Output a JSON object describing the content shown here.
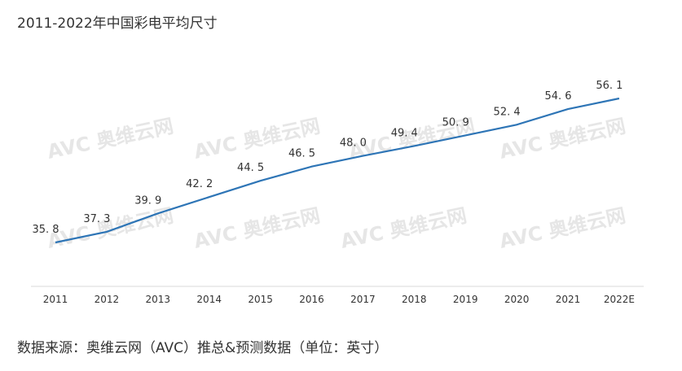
{
  "title": "2011-2022年中国彩电平均尺寸",
  "source": "数据来源：奥维云网（AVC）推总&预测数据（单位：英寸）",
  "watermark": "AVC 奥维云网",
  "colors": {
    "line": "#2e75b6",
    "axis": "#d9d9d9",
    "text": "#333333"
  },
  "chart_data": {
    "type": "line",
    "title": "2011-2022年中国彩电平均尺寸",
    "xlabel": "",
    "ylabel": "",
    "categories": [
      "2011",
      "2012",
      "2013",
      "2014",
      "2015",
      "2016",
      "2017",
      "2018",
      "2019",
      "2020",
      "2021",
      "2022E"
    ],
    "values": [
      35.8,
      37.3,
      39.9,
      42.2,
      44.5,
      46.5,
      48.0,
      49.4,
      50.9,
      52.4,
      54.6,
      56.1
    ],
    "labels": [
      "35. 8",
      "37. 3",
      "39. 9",
      "42. 2",
      "44. 5",
      "46. 5",
      "48. 0",
      "49. 4",
      "50. 9",
      "52. 4",
      "54. 6",
      "56. 1"
    ],
    "ylim": [
      30,
      60
    ],
    "grid": false,
    "legend": "none"
  }
}
